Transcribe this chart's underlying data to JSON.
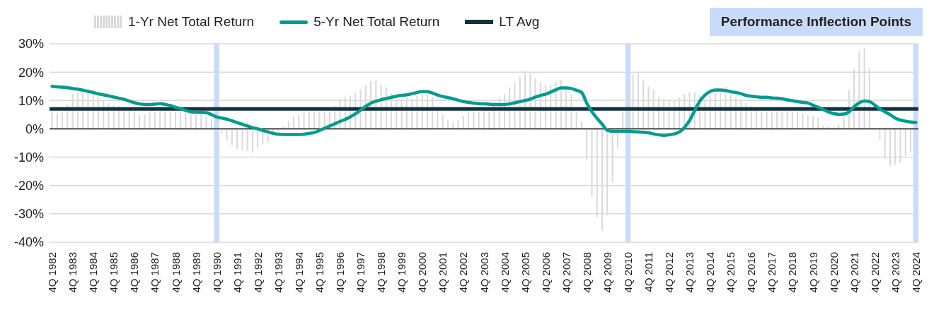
{
  "chart_data": {
    "type": "bar",
    "categories": [
      "4Q 1982",
      null,
      null,
      null,
      "4Q 1983",
      null,
      null,
      null,
      "4Q 1984",
      null,
      null,
      null,
      "4Q 1985",
      null,
      null,
      null,
      "4Q 1986",
      null,
      null,
      null,
      "4Q 1987",
      null,
      null,
      null,
      "4Q 1988",
      null,
      null,
      null,
      "4Q 1989",
      null,
      null,
      null,
      "4Q 1990",
      null,
      null,
      null,
      "4Q 1991",
      null,
      null,
      null,
      "4Q 1992",
      null,
      null,
      null,
      "4Q 1993",
      null,
      null,
      null,
      "4Q 1994",
      null,
      null,
      null,
      "4Q 1995",
      null,
      null,
      null,
      "4Q 1996",
      null,
      null,
      null,
      "4Q 1997",
      null,
      null,
      null,
      "4Q 1998",
      null,
      null,
      null,
      "4Q 1999",
      null,
      null,
      null,
      "4Q 2000",
      null,
      null,
      null,
      "4Q 2001",
      null,
      null,
      null,
      "4Q 2002",
      null,
      null,
      null,
      "4Q 2003",
      null,
      null,
      null,
      "4Q 2004",
      null,
      null,
      null,
      "4Q 2005",
      null,
      null,
      null,
      "4Q 2006",
      null,
      null,
      null,
      "4Q 2007",
      null,
      null,
      null,
      "4Q 2008",
      null,
      null,
      null,
      "4Q 2009",
      null,
      null,
      null,
      "4Q 2010",
      null,
      null,
      null,
      "4Q 2011",
      null,
      null,
      null,
      "4Q 2012",
      null,
      null,
      null,
      "4Q 2013",
      null,
      null,
      null,
      "4Q 2014",
      null,
      null,
      null,
      "4Q 2015",
      null,
      null,
      null,
      "4Q 2016",
      null,
      null,
      null,
      "4Q 2017",
      null,
      null,
      null,
      "4Q 2018",
      null,
      null,
      null,
      "4Q 2019",
      null,
      null,
      null,
      "4Q 2020",
      null,
      null,
      null,
      "4Q 2021",
      null,
      null,
      null,
      "4Q 2022",
      null,
      null,
      null,
      "4Q 2023",
      null,
      null,
      null,
      "4Q 2024"
    ],
    "series": [
      {
        "name": "1-Yr Net Total Return",
        "color": "#d9d9d9",
        "values": [
          6,
          5.5,
          6,
          8.4,
          12.4,
          13,
          12.6,
          14,
          12.2,
          11,
          9.8,
          9,
          8.4,
          8,
          6.8,
          6.5,
          5.7,
          5,
          5,
          6,
          5.7,
          6,
          6,
          6,
          6,
          6,
          6,
          5.5,
          5,
          5,
          4.6,
          3.5,
          0.5,
          -1.6,
          -3.8,
          -5.6,
          -7.1,
          -7.6,
          -7.8,
          -8.4,
          -6.6,
          -5.3,
          -5,
          -1.5,
          -0.7,
          0.9,
          2.8,
          4.4,
          5,
          6,
          6,
          6,
          6,
          6,
          6,
          8,
          10.7,
          11.1,
          11.7,
          12.6,
          14,
          15.3,
          16.8,
          17.1,
          15.5,
          14.6,
          12.4,
          10.7,
          10.7,
          11,
          10.7,
          11.7,
          12.4,
          12.4,
          11,
          7.9,
          4.9,
          3,
          2.3,
          3.2,
          4.6,
          6,
          6,
          6,
          6,
          6,
          9.5,
          10.7,
          12.2,
          14.6,
          16.4,
          18.6,
          20.2,
          19.5,
          18,
          16.4,
          15.3,
          15.5,
          16.6,
          17.2,
          14.8,
          12.2,
          6,
          2.4,
          -10.9,
          -24,
          -31.2,
          -35.8,
          -30.5,
          -18.9,
          -6.9,
          6,
          15.5,
          19.1,
          19.6,
          17.2,
          15,
          13.7,
          11.5,
          10.6,
          10,
          10,
          11,
          12.2,
          13,
          12.8,
          11.7,
          10.6,
          12.2,
          12.6,
          13.3,
          14.8,
          14,
          10.8,
          10.4,
          9.2,
          7.9,
          7.3,
          6,
          6,
          6,
          6,
          6,
          6,
          6,
          6,
          5.5,
          4.8,
          4.4,
          4,
          1.2,
          0.8,
          0.5,
          1.5,
          4.4,
          13.8,
          21.1,
          27.3,
          28.4,
          21.1,
          null,
          -3.8,
          -10.5,
          -12.9,
          -12.7,
          -12,
          -9.6,
          -8.1,
          -2.3
        ]
      },
      {
        "name": "5-Yr Net Total Return",
        "type": "line",
        "color": "#009b8d",
        "values": [
          15,
          14.8,
          14.7,
          14.5,
          14.2,
          14,
          13.6,
          13.2,
          12.8,
          12.3,
          12,
          11.6,
          11.2,
          10.8,
          10.4,
          9.8,
          9.2,
          8.8,
          8.6,
          8.6,
          8.7,
          8.9,
          8.6,
          8.2,
          7.6,
          7.1,
          6.5,
          6,
          5.9,
          5.8,
          5.7,
          5,
          4.2,
          3.8,
          3.4,
          2.8,
          2.2,
          1.6,
          1,
          0.4,
          0,
          -0.6,
          -1.1,
          -1.6,
          -1.9,
          -2,
          -2,
          -2,
          -2,
          -1.9,
          -1.6,
          -1.3,
          -0.6,
          0.2,
          1,
          1.8,
          2.6,
          3.3,
          4.2,
          5.3,
          6.6,
          7.9,
          9.1,
          9.7,
          10.3,
          10.7,
          11.1,
          11.5,
          11.8,
          12,
          12.4,
          12.8,
          13.2,
          13.1,
          12.6,
          11.9,
          11.4,
          11,
          10.6,
          10.1,
          9.6,
          9.3,
          9.1,
          8.9,
          8.8,
          8.7,
          8.6,
          8.6,
          8.6,
          8.8,
          9.2,
          9.6,
          10,
          10.5,
          11.2,
          11.8,
          12.2,
          13,
          13.8,
          14.4,
          14.4,
          14.2,
          13.6,
          12.8,
          9,
          6,
          3.7,
          1.6,
          -0.5,
          -0.9,
          -0.9,
          -0.9,
          -0.9,
          -1,
          -1.1,
          -1.2,
          -1.4,
          -1.8,
          -2.1,
          -2.3,
          -2.1,
          -1.8,
          -1.1,
          0.5,
          3,
          6.5,
          9.8,
          11.9,
          13.2,
          13.7,
          13.7,
          13.5,
          13.1,
          12.8,
          12.4,
          11.8,
          11.5,
          11.3,
          11.1,
          11.1,
          10.9,
          10.8,
          10.6,
          10.2,
          9.9,
          9.6,
          9.3,
          9.1,
          8.3,
          7.6,
          6.8,
          6,
          5.4,
          5.1,
          5.2,
          6,
          7.8,
          9.2,
          9.8,
          9.6,
          8.4,
          7,
          6,
          5,
          3.8,
          3.1,
          2.7,
          2.4,
          2.2
        ]
      }
    ],
    "ylim": [
      -40,
      30
    ],
    "yticks": [
      {
        "value": -40,
        "label": "-40%"
      },
      {
        "value": -30,
        "label": "-30%"
      },
      {
        "value": -20,
        "label": "-20%"
      },
      {
        "value": -10,
        "label": "-10%"
      },
      {
        "value": 0,
        "label": "0%"
      },
      {
        "value": 10,
        "label": "10%"
      },
      {
        "value": 20,
        "label": "20%"
      },
      {
        "value": 30,
        "label": "30%"
      }
    ],
    "grid": "y",
    "legend": "top",
    "ref_lines": [
      {
        "axis": "y",
        "value": 7,
        "label": "LT Avg",
        "color": "#12323f"
      }
    ],
    "bands": [
      {
        "axis": "x",
        "from": "4Q 1990",
        "to": "4Q 1990",
        "label": "Performance Inflection Points",
        "color": "#c9dbfb"
      },
      {
        "axis": "x",
        "from": "4Q 2010",
        "to": "4Q 2010",
        "color": "#c9dbfb"
      },
      {
        "axis": "x",
        "from": "4Q 2024",
        "to": "4Q 2024",
        "color": "#c9dbfb"
      }
    ]
  }
}
